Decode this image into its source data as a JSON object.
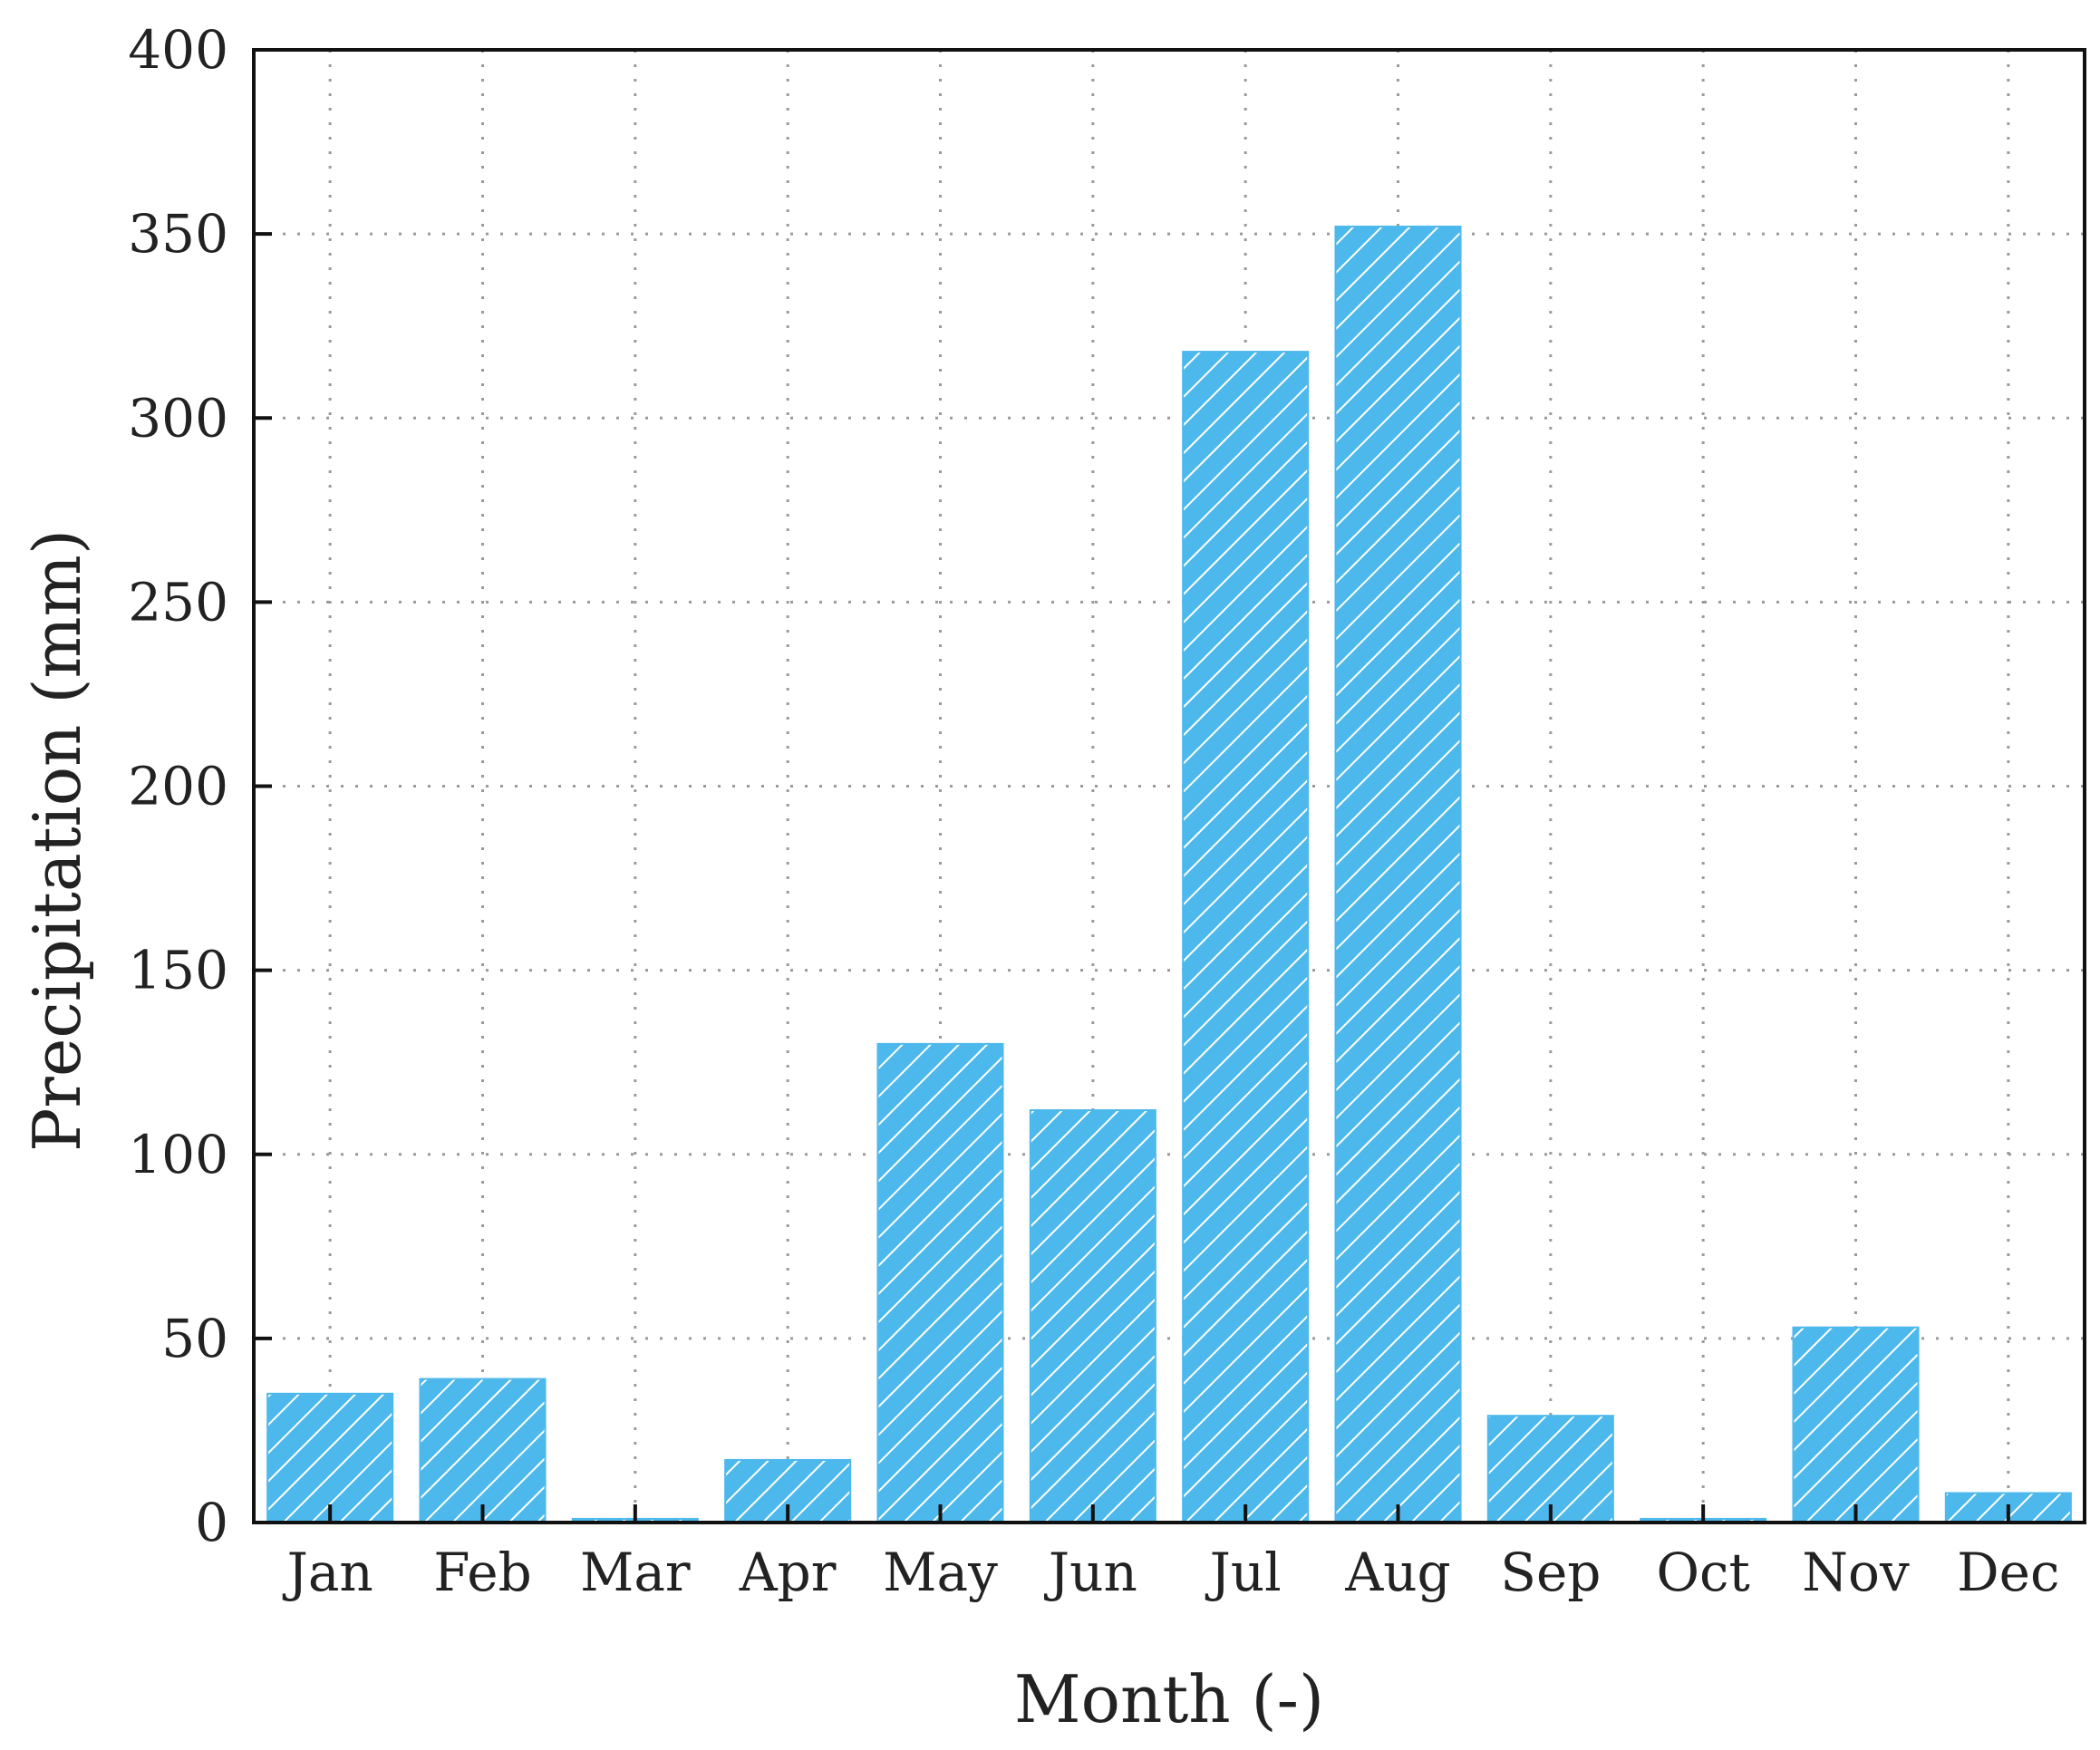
{
  "chart_data": {
    "type": "bar",
    "categories": [
      "Jan",
      "Feb",
      "Mar",
      "Apr",
      "May",
      "Jun",
      "Jul",
      "Aug",
      "Sep",
      "Oct",
      "Nov",
      "Dec"
    ],
    "values": [
      35,
      39,
      1,
      17,
      130,
      112,
      318,
      352,
      29,
      1,
      53,
      8
    ],
    "xlabel": "Month (-)",
    "ylabel": "Precipitation (mm)",
    "ylim": [
      0,
      400
    ],
    "yticks": [
      0,
      50,
      100,
      150,
      200,
      250,
      300,
      350,
      400
    ],
    "grid": true,
    "bar_color": "#4db8ec",
    "hatch_color": "#ffffff"
  }
}
